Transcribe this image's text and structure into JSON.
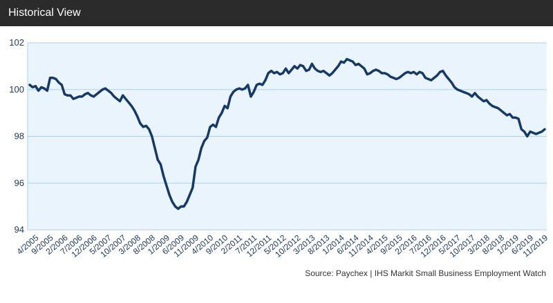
{
  "header": {
    "title": "Historical View"
  },
  "source": "Source: Paychex | IHS Markit Small Business Employment Watch",
  "colors": {
    "line": "#16396b",
    "plot_bg": "#e9f4fc",
    "grid": "#a8d3ef",
    "header_bg": "#2b2b2b"
  },
  "chart_data": {
    "type": "line",
    "title": "",
    "xlabel": "",
    "ylabel": "",
    "ylim": [
      94,
      102
    ],
    "yticks": [
      94,
      96,
      98,
      100,
      102
    ],
    "grid": true,
    "xtick_labels": [
      "4/2005",
      "9/2005",
      "2/2006",
      "7/2006",
      "12/2006",
      "5/2007",
      "10/2007",
      "3/2008",
      "8/2008",
      "1/2009",
      "6/2009",
      "11/2009",
      "4/2010",
      "9/2010",
      "2/2011",
      "7/2011",
      "12/2011",
      "5/2012",
      "10/2012",
      "3/2013",
      "8/2013",
      "1/2014",
      "6/2014",
      "11/2014",
      "4/2015",
      "9/2015",
      "2/2016",
      "7/2016",
      "12/2016",
      "5/2017",
      "10/2017",
      "3/2018",
      "8/2018",
      "1/2019",
      "6/2019",
      "11/2019"
    ],
    "series": [
      {
        "values": [
          100.2,
          100.1,
          100.15,
          99.95,
          100.1,
          100.05,
          99.95,
          100.5,
          100.5,
          100.45,
          100.3,
          100.2,
          99.8,
          99.75,
          99.75,
          99.6,
          99.65,
          99.7,
          99.7,
          99.8,
          99.85,
          99.75,
          99.7,
          99.8,
          99.9,
          100.0,
          100.05,
          99.95,
          99.85,
          99.7,
          99.6,
          99.5,
          99.75,
          99.6,
          99.45,
          99.3,
          99.1,
          98.85,
          98.55,
          98.4,
          98.45,
          98.3,
          98.0,
          97.5,
          97.0,
          96.8,
          96.3,
          95.9,
          95.5,
          95.2,
          95.0,
          94.9,
          95.0,
          95.0,
          95.2,
          95.5,
          95.8,
          96.7,
          97.0,
          97.5,
          97.8,
          97.95,
          98.4,
          98.5,
          98.4,
          98.8,
          99.0,
          99.3,
          99.2,
          99.7,
          99.9,
          100.0,
          100.05,
          100.0,
          100.05,
          100.2,
          99.7,
          99.9,
          100.2,
          100.25,
          100.2,
          100.4,
          100.7,
          100.8,
          100.7,
          100.75,
          100.65,
          100.7,
          100.9,
          100.7,
          100.85,
          101.0,
          100.9,
          101.05,
          101.0,
          100.8,
          100.85,
          101.1,
          100.9,
          100.8,
          100.75,
          100.8,
          100.7,
          100.6,
          100.7,
          100.85,
          101.0,
          101.2,
          101.15,
          101.3,
          101.25,
          101.2,
          101.05,
          101.1,
          101.0,
          100.9,
          100.65,
          100.7,
          100.8,
          100.85,
          100.8,
          100.7,
          100.7,
          100.65,
          100.55,
          100.5,
          100.45,
          100.5,
          100.6,
          100.7,
          100.75,
          100.7,
          100.75,
          100.65,
          100.75,
          100.7,
          100.5,
          100.45,
          100.4,
          100.5,
          100.6,
          100.75,
          100.8,
          100.6,
          100.45,
          100.3,
          100.1,
          100.0,
          99.95,
          99.9,
          99.85,
          99.8,
          99.7,
          99.85,
          99.7,
          99.6,
          99.5,
          99.55,
          99.4,
          99.3,
          99.25,
          99.2,
          99.1,
          99.0,
          98.9,
          98.95,
          98.8,
          98.8,
          98.75,
          98.3,
          98.2,
          98.0,
          98.2,
          98.15,
          98.1,
          98.15,
          98.2,
          98.3
        ]
      }
    ]
  }
}
